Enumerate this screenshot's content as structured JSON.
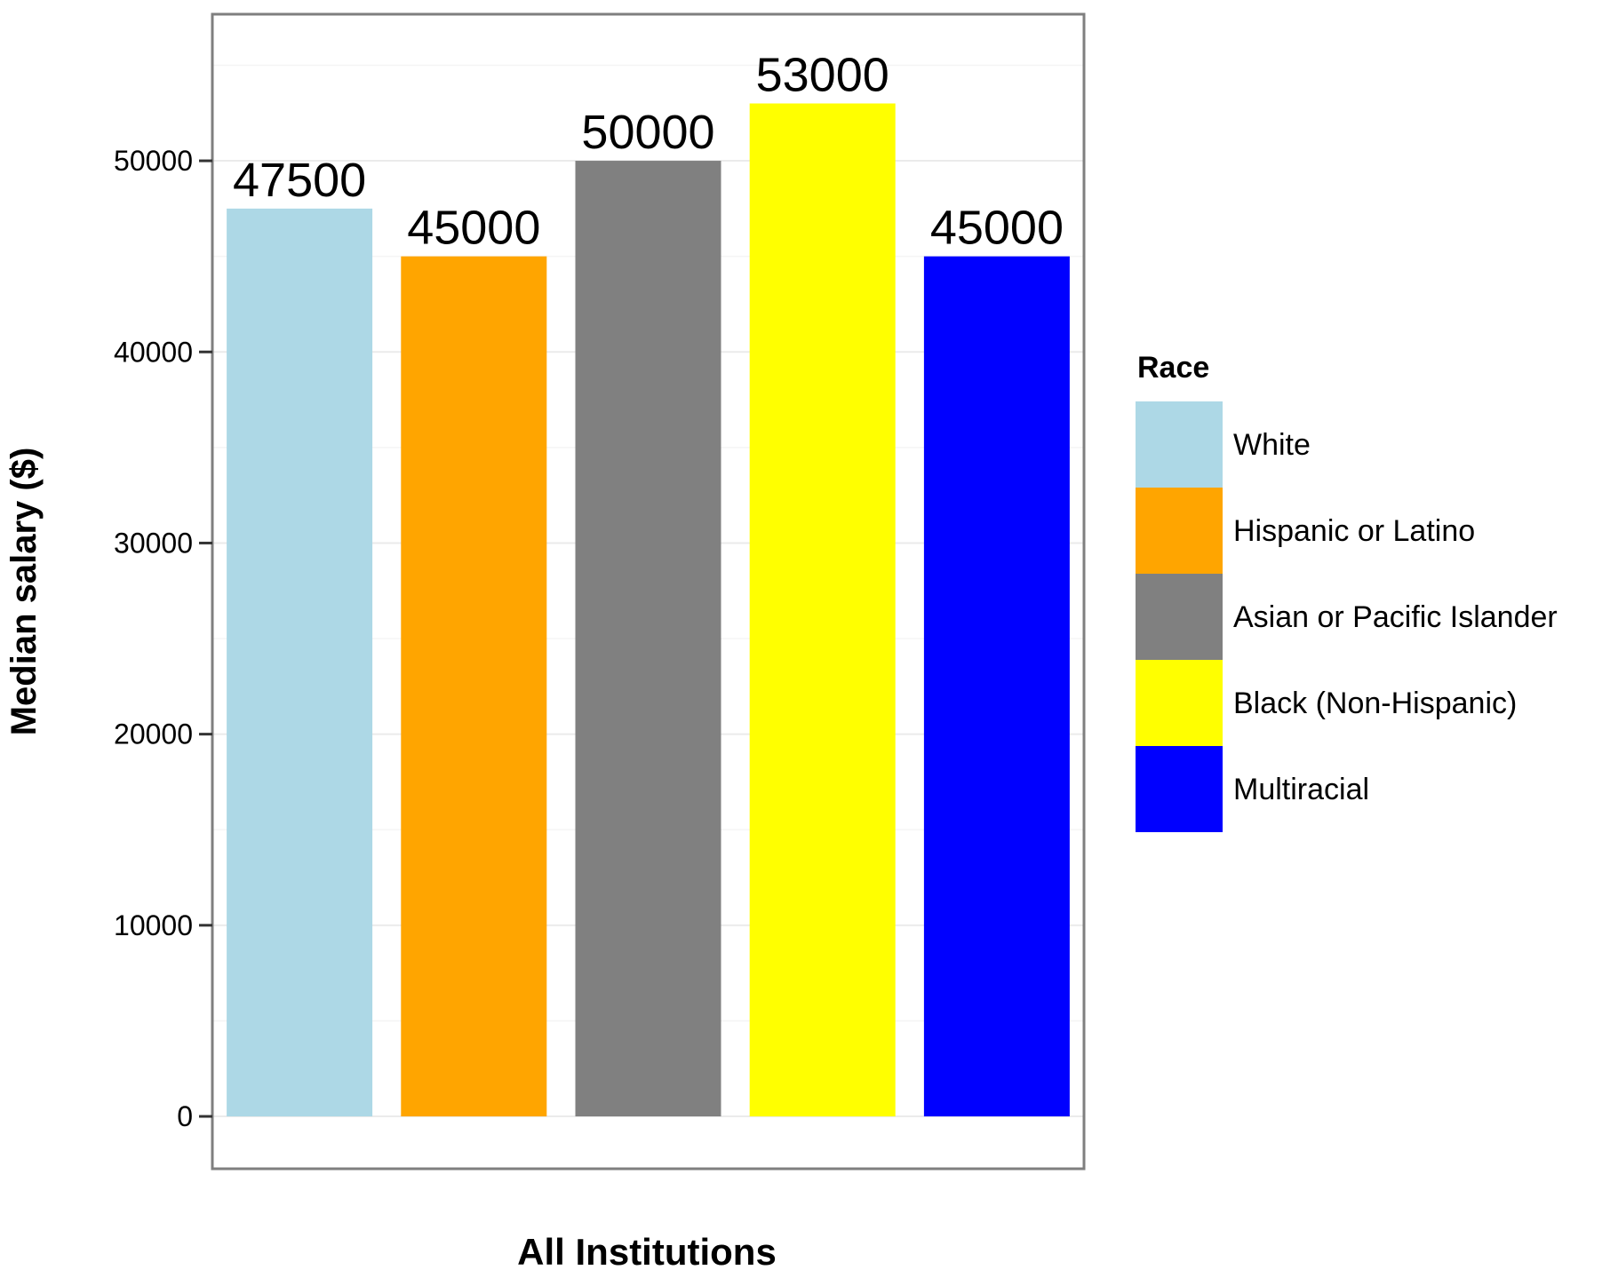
{
  "chart_data": {
    "type": "bar",
    "title": "",
    "xlabel": "All Institutions",
    "ylabel": "Median salary ($)",
    "categories": [
      "White",
      "Hispanic or Latino",
      "Asian or Pacific Islander",
      "Black (Non-Hispanic)",
      "Multiracial"
    ],
    "values": [
      47500,
      45000,
      50000,
      53000,
      45000
    ],
    "data_labels": [
      "47500",
      "45000",
      "50000",
      "53000",
      "45000"
    ],
    "colors": [
      "#add8e6",
      "#ffa500",
      "#808080",
      "#ffff00",
      "#0000ff"
    ],
    "ylim": [
      -2740,
      57670
    ],
    "yticks": [
      0,
      10000,
      20000,
      30000,
      40000,
      50000
    ],
    "ytick_labels": [
      "0",
      "10000",
      "20000",
      "30000",
      "40000",
      "50000"
    ],
    "grid": true,
    "legend": {
      "title": "Race",
      "position": "right",
      "entries": [
        "White",
        "Hispanic or Latino",
        "Asian or Pacific Islander",
        "Black (Non-Hispanic)",
        "Multiracial"
      ]
    }
  }
}
